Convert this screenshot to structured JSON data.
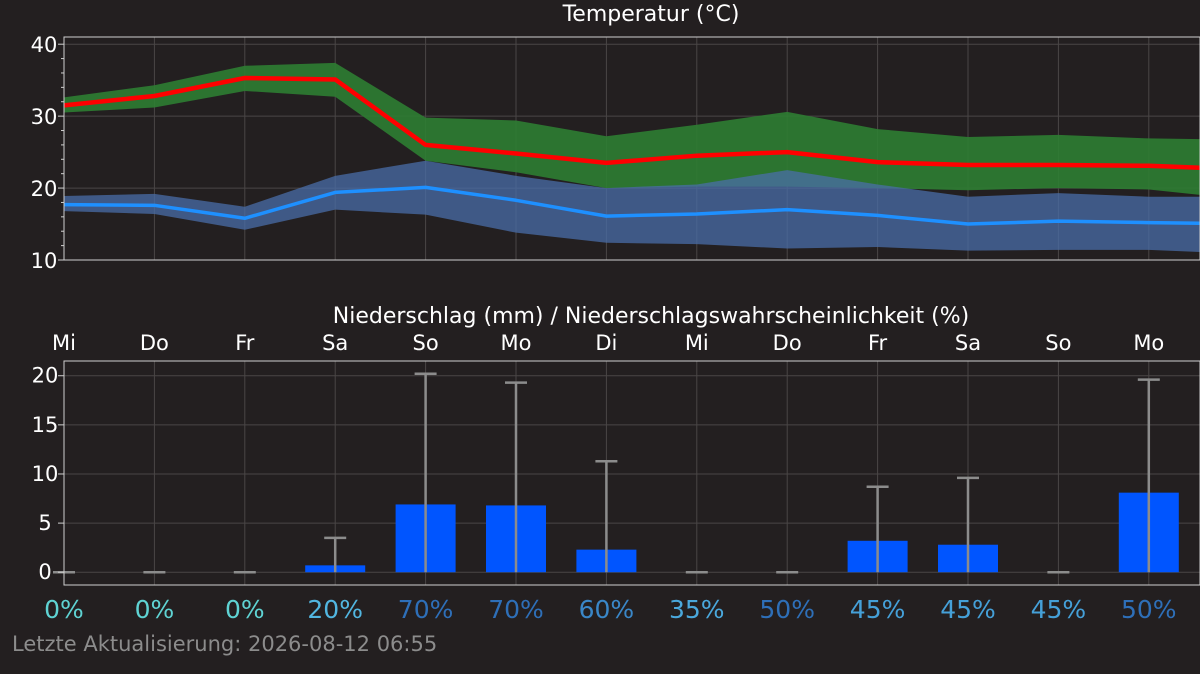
{
  "chart_data": [
    {
      "type": "area",
      "title": "Temperatur (°C)",
      "ylim": [
        10,
        41
      ],
      "yticks": [
        10,
        20,
        30,
        40
      ],
      "grid": true,
      "x": [
        0,
        1,
        2,
        3,
        4,
        5,
        6,
        7,
        8,
        9,
        10,
        11,
        12,
        12.6
      ],
      "series": [
        {
          "role": "max",
          "color": "#ff0000",
          "band_color": "#2e7d32",
          "values": [
            31.5,
            32.8,
            35.3,
            35.1,
            26.0,
            24.8,
            23.5,
            24.5,
            25.0,
            23.6,
            23.2,
            23.2,
            23.1,
            22.8
          ],
          "band_low": [
            30.5,
            31.2,
            33.5,
            32.7,
            23.8,
            22.2,
            20.0,
            20.2,
            20.2,
            20.0,
            19.7,
            20.0,
            19.8,
            19.0
          ],
          "band_high": [
            32.6,
            34.3,
            37.0,
            37.4,
            29.8,
            29.4,
            27.2,
            28.8,
            30.6,
            28.2,
            27.1,
            27.4,
            26.9,
            26.8
          ]
        },
        {
          "role": "min",
          "color": "#1e90ff",
          "band_color": "#4a6ea8",
          "values": [
            17.7,
            17.6,
            15.8,
            19.4,
            20.1,
            18.3,
            16.1,
            16.4,
            17.0,
            16.2,
            15.0,
            15.4,
            15.2,
            15.1
          ],
          "band_low": [
            16.8,
            16.4,
            14.2,
            17.0,
            16.3,
            13.8,
            12.4,
            12.2,
            11.6,
            11.8,
            11.3,
            11.4,
            11.4,
            11.1
          ],
          "band_high": [
            18.9,
            19.2,
            17.4,
            21.7,
            23.8,
            21.7,
            20.0,
            20.5,
            22.5,
            20.5,
            18.8,
            19.3,
            18.8,
            18.8
          ]
        }
      ]
    },
    {
      "type": "bar",
      "title": "Niederschlag (mm) / Niederschlagswahrscheinlichkeit (%)",
      "ylim": [
        -1.3,
        21.5
      ],
      "yticks": [
        0,
        5,
        10,
        15,
        20
      ],
      "grid": true,
      "categories": [
        "Mi",
        "Do",
        "Fr",
        "Sa",
        "So",
        "Mo",
        "Di",
        "Mi",
        "Do",
        "Fr",
        "Sa",
        "So",
        "Mo"
      ],
      "values": [
        0,
        0,
        0,
        0.7,
        6.9,
        6.8,
        2.3,
        0,
        0,
        3.2,
        2.8,
        0,
        8.1
      ],
      "error_high": [
        0,
        0,
        0,
        3.5,
        20.2,
        19.3,
        11.3,
        0,
        0,
        8.7,
        9.6,
        0,
        19.6
      ],
      "bar_color": "#0055ff",
      "whisker_color": "#8c8c8c",
      "probabilities": [
        "0%",
        "0%",
        "0%",
        "20%",
        "70%",
        "70%",
        "60%",
        "35%",
        "50%",
        "45%",
        "45%",
        "45%",
        "50%"
      ],
      "probability_colors": [
        "#5fd3d3",
        "#5fd3d3",
        "#5fd3d3",
        "#52b6e0",
        "#2e6fb8",
        "#2e6fb8",
        "#3a87c8",
        "#4aa8dc",
        "#2e6fb8",
        "#45a0d8",
        "#45a0d8",
        "#45a0d8",
        "#2e6fb8"
      ]
    }
  ],
  "footer": {
    "updated": "Letzte Aktualisierung: 2026-08-12 06:55"
  }
}
